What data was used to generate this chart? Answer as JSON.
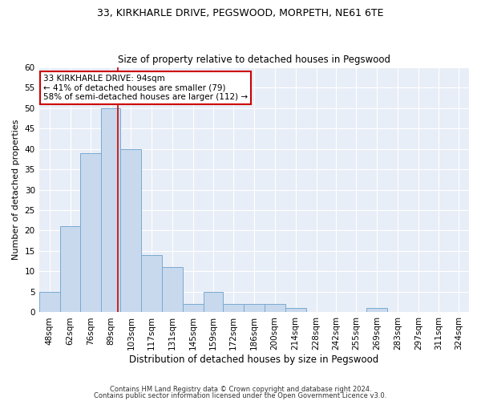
{
  "title": "33, KIRKHARLE DRIVE, PEGSWOOD, MORPETH, NE61 6TE",
  "subtitle": "Size of property relative to detached houses in Pegswood",
  "xlabel": "Distribution of detached houses by size in Pegswood",
  "ylabel": "Number of detached properties",
  "bar_labels": [
    "48sqm",
    "62sqm",
    "76sqm",
    "89sqm",
    "103sqm",
    "117sqm",
    "131sqm",
    "145sqm",
    "159sqm",
    "172sqm",
    "186sqm",
    "200sqm",
    "214sqm",
    "228sqm",
    "242sqm",
    "255sqm",
    "269sqm",
    "283sqm",
    "297sqm",
    "311sqm",
    "324sqm"
  ],
  "bar_values": [
    5,
    21,
    39,
    50,
    40,
    14,
    11,
    2,
    5,
    2,
    2,
    2,
    1,
    0,
    0,
    0,
    1,
    0,
    0,
    0,
    0
  ],
  "bar_color": "#c8d9ee",
  "bar_edge_color": "#7aaad0",
  "property_line_x": 94,
  "bin_edges": [
    41,
    55,
    69,
    83,
    96,
    110,
    124,
    138,
    152,
    165,
    179,
    193,
    207,
    221,
    235,
    248,
    262,
    276,
    290,
    304,
    317,
    331
  ],
  "annotation_text": "33 KIRKHARLE DRIVE: 94sqm\n← 41% of detached houses are smaller (79)\n58% of semi-detached houses are larger (112) →",
  "annotation_box_color": "#ffffff",
  "annotation_box_edge": "#cc0000",
  "red_line_color": "#cc0000",
  "ylim": [
    0,
    60
  ],
  "yticks": [
    0,
    5,
    10,
    15,
    20,
    25,
    30,
    35,
    40,
    45,
    50,
    55,
    60
  ],
  "footer_line1": "Contains HM Land Registry data © Crown copyright and database right 2024.",
  "footer_line2": "Contains public sector information licensed under the Open Government Licence v3.0.",
  "bg_color": "#ffffff",
  "plot_bg_color": "#e8eef7"
}
